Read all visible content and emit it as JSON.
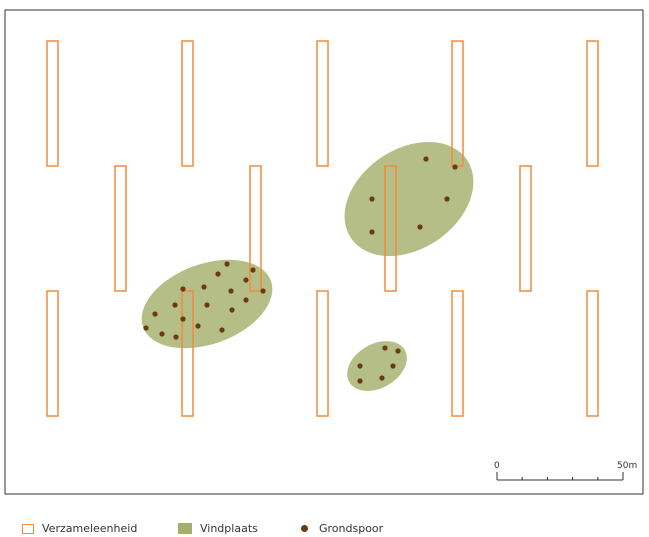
{
  "colors": {
    "unit_stroke": "#f28c3c",
    "site_fill": "#a3b06b",
    "trace_fill": "#6b3a10",
    "frame": "#333333"
  },
  "scale": {
    "start_label": "0",
    "end_label": "50m",
    "divisions": 5
  },
  "legend": {
    "unit_label": "Verzameleenheid",
    "site_label": "Vindplaats",
    "trace_label": "Grondspoor"
  }
}
